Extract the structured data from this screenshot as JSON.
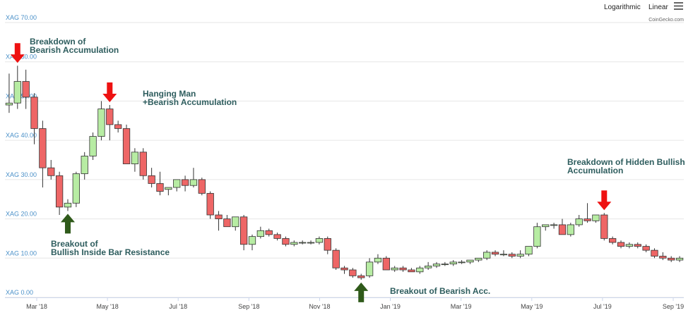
{
  "toolbar": {
    "log_label": "Logarithmic",
    "linear_label": "Linear",
    "menu_icon": "hamburger-icon"
  },
  "credit": "CoinGecko.com",
  "colors": {
    "up": "#b7eca3",
    "down": "#ee6666",
    "grid": "#e6e6e6",
    "wick": "#333333",
    "arrow_down": "#ee1111",
    "arrow_up": "#2f5a1a",
    "annotation": "#2e5d5e",
    "ytick": "#4a90c8"
  },
  "chart_data": {
    "type": "candlestick",
    "ylim": [
      0,
      70
    ],
    "ytick_values": [
      0,
      10,
      20,
      30,
      40,
      50,
      60,
      70
    ],
    "ytick_labels": [
      "XAG 0.00",
      "XAG 10.00",
      "XAG 20.00",
      "XAG 30.00",
      "XAG 40.00",
      "XAG 50.00",
      "XAG 60.00",
      "XAG 70.00"
    ],
    "xtick_labels": [
      "Mar '18",
      "May '18",
      "Jul '18",
      "Sep '18",
      "Nov '18",
      "Jan '19",
      "Mar '19",
      "May '19",
      "Jul '19",
      "Sep '19"
    ],
    "candles": [
      {
        "o": 49,
        "h": 57,
        "l": 47,
        "c": 49.5
      },
      {
        "o": 49.5,
        "h": 59,
        "l": 48,
        "c": 55
      },
      {
        "o": 55,
        "h": 58,
        "l": 48,
        "c": 51
      },
      {
        "o": 51,
        "h": 52,
        "l": 39,
        "c": 43
      },
      {
        "o": 43,
        "h": 45,
        "l": 28,
        "c": 33
      },
      {
        "o": 33,
        "h": 35,
        "l": 30,
        "c": 31
      },
      {
        "o": 31,
        "h": 32,
        "l": 21,
        "c": 23
      },
      {
        "o": 23,
        "h": 25,
        "l": 22,
        "c": 24
      },
      {
        "o": 24,
        "h": 32,
        "l": 23,
        "c": 31.5
      },
      {
        "o": 31.5,
        "h": 37,
        "l": 30,
        "c": 36
      },
      {
        "o": 36,
        "h": 42,
        "l": 35,
        "c": 41
      },
      {
        "o": 41,
        "h": 50,
        "l": 40,
        "c": 48
      },
      {
        "o": 48,
        "h": 49,
        "l": 40,
        "c": 44
      },
      {
        "o": 44,
        "h": 45,
        "l": 42,
        "c": 43
      },
      {
        "o": 43,
        "h": 44,
        "l": 34,
        "c": 34
      },
      {
        "o": 34,
        "h": 38,
        "l": 32,
        "c": 37
      },
      {
        "o": 37,
        "h": 38,
        "l": 30,
        "c": 31
      },
      {
        "o": 31,
        "h": 33,
        "l": 28,
        "c": 29
      },
      {
        "o": 29,
        "h": 32,
        "l": 26,
        "c": 27
      },
      {
        "o": 27.5,
        "h": 28,
        "l": 26,
        "c": 28
      },
      {
        "o": 28,
        "h": 30,
        "l": 27,
        "c": 30
      },
      {
        "o": 30,
        "h": 31,
        "l": 27,
        "c": 28.5
      },
      {
        "o": 28.5,
        "h": 33,
        "l": 28,
        "c": 30
      },
      {
        "o": 30,
        "h": 30.5,
        "l": 26,
        "c": 26.5
      },
      {
        "o": 26.5,
        "h": 27,
        "l": 20,
        "c": 21
      },
      {
        "o": 21,
        "h": 22,
        "l": 17,
        "c": 20
      },
      {
        "o": 20,
        "h": 21,
        "l": 18,
        "c": 18
      },
      {
        "o": 18,
        "h": 20.5,
        "l": 17,
        "c": 20.5
      },
      {
        "o": 20.5,
        "h": 21,
        "l": 12,
        "c": 13.5
      },
      {
        "o": 13.5,
        "h": 16,
        "l": 12,
        "c": 15.5
      },
      {
        "o": 15.5,
        "h": 18,
        "l": 15,
        "c": 17
      },
      {
        "o": 17,
        "h": 17.5,
        "l": 15.5,
        "c": 16
      },
      {
        "o": 16,
        "h": 16.5,
        "l": 14.5,
        "c": 15
      },
      {
        "o": 15,
        "h": 15.5,
        "l": 13,
        "c": 13.5
      },
      {
        "o": 13.5,
        "h": 14.5,
        "l": 13,
        "c": 14
      },
      {
        "o": 14,
        "h": 14.5,
        "l": 13.5,
        "c": 14
      },
      {
        "o": 14,
        "h": 14.5,
        "l": 13.5,
        "c": 14
      },
      {
        "o": 14,
        "h": 15.5,
        "l": 13.5,
        "c": 15
      },
      {
        "o": 15,
        "h": 15.5,
        "l": 11,
        "c": 12
      },
      {
        "o": 12,
        "h": 12.5,
        "l": 7,
        "c": 7.5
      },
      {
        "o": 7.5,
        "h": 8,
        "l": 6,
        "c": 7
      },
      {
        "o": 7,
        "h": 7.5,
        "l": 5,
        "c": 5.5
      },
      {
        "o": 5.5,
        "h": 6,
        "l": 4.5,
        "c": 5
      },
      {
        "o": 5.5,
        "h": 10,
        "l": 5,
        "c": 9
      },
      {
        "o": 9,
        "h": 11,
        "l": 8.5,
        "c": 10
      },
      {
        "o": 10,
        "h": 10.5,
        "l": 7,
        "c": 7
      },
      {
        "o": 7,
        "h": 8,
        "l": 6.5,
        "c": 7.5
      },
      {
        "o": 7.5,
        "h": 8,
        "l": 6.5,
        "c": 7
      },
      {
        "o": 7,
        "h": 7.5,
        "l": 6.5,
        "c": 6.5
      },
      {
        "o": 6.5,
        "h": 8,
        "l": 6,
        "c": 7.5
      },
      {
        "o": 7.5,
        "h": 9,
        "l": 7,
        "c": 8
      },
      {
        "o": 8,
        "h": 9,
        "l": 7.5,
        "c": 8.5
      },
      {
        "o": 8.5,
        "h": 9,
        "l": 8,
        "c": 8.5
      },
      {
        "o": 8.5,
        "h": 9.5,
        "l": 8,
        "c": 9
      },
      {
        "o": 9,
        "h": 9.5,
        "l": 8.5,
        "c": 9
      },
      {
        "o": 9,
        "h": 9.5,
        "l": 8.5,
        "c": 9.5
      },
      {
        "o": 9.5,
        "h": 10,
        "l": 9,
        "c": 10
      },
      {
        "o": 10,
        "h": 12,
        "l": 9.5,
        "c": 11.5
      },
      {
        "o": 11.5,
        "h": 12,
        "l": 10.5,
        "c": 11
      },
      {
        "o": 11,
        "h": 12,
        "l": 10.5,
        "c": 11
      },
      {
        "o": 11,
        "h": 11.5,
        "l": 10,
        "c": 10.5
      },
      {
        "o": 10.5,
        "h": 12,
        "l": 10,
        "c": 11
      },
      {
        "o": 11,
        "h": 13,
        "l": 10.5,
        "c": 13
      },
      {
        "o": 13,
        "h": 19,
        "l": 12.5,
        "c": 18
      },
      {
        "o": 18,
        "h": 18.5,
        "l": 17,
        "c": 18.5
      },
      {
        "o": 18.5,
        "h": 19,
        "l": 17.5,
        "c": 18.5
      },
      {
        "o": 18.5,
        "h": 20,
        "l": 16,
        "c": 16
      },
      {
        "o": 16,
        "h": 19,
        "l": 15.5,
        "c": 18.5
      },
      {
        "o": 18.5,
        "h": 21,
        "l": 18,
        "c": 20
      },
      {
        "o": 20,
        "h": 24,
        "l": 19,
        "c": 19.5
      },
      {
        "o": 19.5,
        "h": 21,
        "l": 19,
        "c": 21
      },
      {
        "o": 21,
        "h": 21.5,
        "l": 14.5,
        "c": 15
      },
      {
        "o": 15,
        "h": 15.5,
        "l": 13.5,
        "c": 14
      },
      {
        "o": 14,
        "h": 14.5,
        "l": 12.5,
        "c": 13
      },
      {
        "o": 13,
        "h": 14,
        "l": 12.5,
        "c": 13.5
      },
      {
        "o": 13.5,
        "h": 14,
        "l": 12.5,
        "c": 13
      },
      {
        "o": 13,
        "h": 13.5,
        "l": 11.5,
        "c": 12
      },
      {
        "o": 12,
        "h": 12.5,
        "l": 10,
        "c": 10.5
      },
      {
        "o": 10.5,
        "h": 11.5,
        "l": 9.5,
        "c": 10
      },
      {
        "o": 10,
        "h": 10.5,
        "l": 9,
        "c": 9.5
      },
      {
        "o": 9.5,
        "h": 10.5,
        "l": 9,
        "c": 10
      }
    ],
    "annotations": [
      {
        "label_lines": [
          "Breakdown of",
          "Bearish Accumulation"
        ],
        "direction": "down",
        "candle": 1
      },
      {
        "label_lines": [
          "Hanging Man",
          "+Bearish Accumulation"
        ],
        "direction": "down",
        "candle": 12
      },
      {
        "label_lines": [
          "Breakout of",
          "Bullish Inside Bar Resistance"
        ],
        "direction": "up",
        "candle": 7
      },
      {
        "label_lines": [
          "Breakout of Bearish Acc."
        ],
        "direction": "up",
        "candle": 42
      },
      {
        "label_lines": [
          "Breakdown of Hidden Bullish",
          "Accumulation"
        ],
        "direction": "down",
        "candle": 71
      }
    ]
  }
}
